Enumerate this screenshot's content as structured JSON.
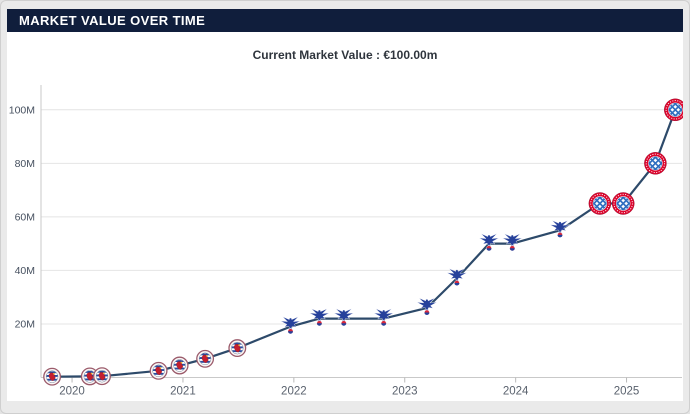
{
  "header": {
    "title": "MARKET VALUE OVER TIME"
  },
  "subtitle": {
    "text": "Current Market Value : €100.00m"
  },
  "colors": {
    "header_bg": "#101e3c",
    "line": "#2d4a6a",
    "grid": "#e4e4e4",
    "axis": "#c9c9c9",
    "tick": "#b9b9b9",
    "page_bg": "#eaeaea",
    "bayern_red": "#dc052d",
    "palace_blue": "#26419b",
    "reading_maroon": "#9b5b6b"
  },
  "chart_data": {
    "type": "line",
    "title": "Market Value Over Time",
    "subtitle": "Current Market Value : €100.00m",
    "unit": "million EUR",
    "xlabel": "",
    "ylabel": "",
    "grid": "horizontal",
    "legend": "none",
    "x_ticks": [
      2020,
      2021,
      2022,
      2023,
      2024,
      2025
    ],
    "y_ticks": [
      {
        "value": 20,
        "label": "20M"
      },
      {
        "value": 40,
        "label": "40M"
      },
      {
        "value": 60,
        "label": "60M"
      },
      {
        "value": 80,
        "label": "80M"
      },
      {
        "value": 100,
        "label": "100M"
      }
    ],
    "xlim": [
      2019.72,
      2025.5
    ],
    "ylim": [
      0,
      110
    ],
    "points": [
      {
        "year": 2019.82,
        "value_m": 0.3,
        "club": "Reading FC",
        "logo": "reading"
      },
      {
        "year": 2020.16,
        "value_m": 0.4,
        "club": "Reading FC",
        "logo": "reading"
      },
      {
        "year": 2020.27,
        "value_m": 0.5,
        "club": "Reading FC",
        "logo": "reading"
      },
      {
        "year": 2020.78,
        "value_m": 2.5,
        "club": "Reading FC",
        "logo": "reading"
      },
      {
        "year": 2020.97,
        "value_m": 4.5,
        "club": "Reading FC",
        "logo": "reading"
      },
      {
        "year": 2021.2,
        "value_m": 7,
        "club": "Reading FC",
        "logo": "reading"
      },
      {
        "year": 2021.49,
        "value_m": 11,
        "club": "Reading FC",
        "logo": "reading"
      },
      {
        "year": 2021.97,
        "value_m": 19,
        "club": "Crystal Palace",
        "logo": "palace"
      },
      {
        "year": 2022.23,
        "value_m": 22,
        "club": "Crystal Palace",
        "logo": "palace"
      },
      {
        "year": 2022.45,
        "value_m": 22,
        "club": "Crystal Palace",
        "logo": "palace"
      },
      {
        "year": 2022.81,
        "value_m": 22,
        "club": "Crystal Palace",
        "logo": "palace"
      },
      {
        "year": 2023.2,
        "value_m": 26,
        "club": "Crystal Palace",
        "logo": "palace"
      },
      {
        "year": 2023.47,
        "value_m": 37,
        "club": "Crystal Palace",
        "logo": "palace"
      },
      {
        "year": 2023.76,
        "value_m": 50,
        "club": "Crystal Palace",
        "logo": "palace"
      },
      {
        "year": 2023.97,
        "value_m": 50,
        "club": "Crystal Palace",
        "logo": "palace"
      },
      {
        "year": 2024.4,
        "value_m": 55,
        "club": "Crystal Palace",
        "logo": "palace"
      },
      {
        "year": 2024.76,
        "value_m": 65,
        "club": "Bayern Munich",
        "logo": "bayern"
      },
      {
        "year": 2024.97,
        "value_m": 65,
        "club": "Bayern Munich",
        "logo": "bayern"
      },
      {
        "year": 2025.26,
        "value_m": 80,
        "club": "Bayern Munich",
        "logo": "bayern"
      },
      {
        "year": 2025.44,
        "value_m": 100,
        "club": "Bayern Munich",
        "logo": "bayern"
      }
    ]
  }
}
